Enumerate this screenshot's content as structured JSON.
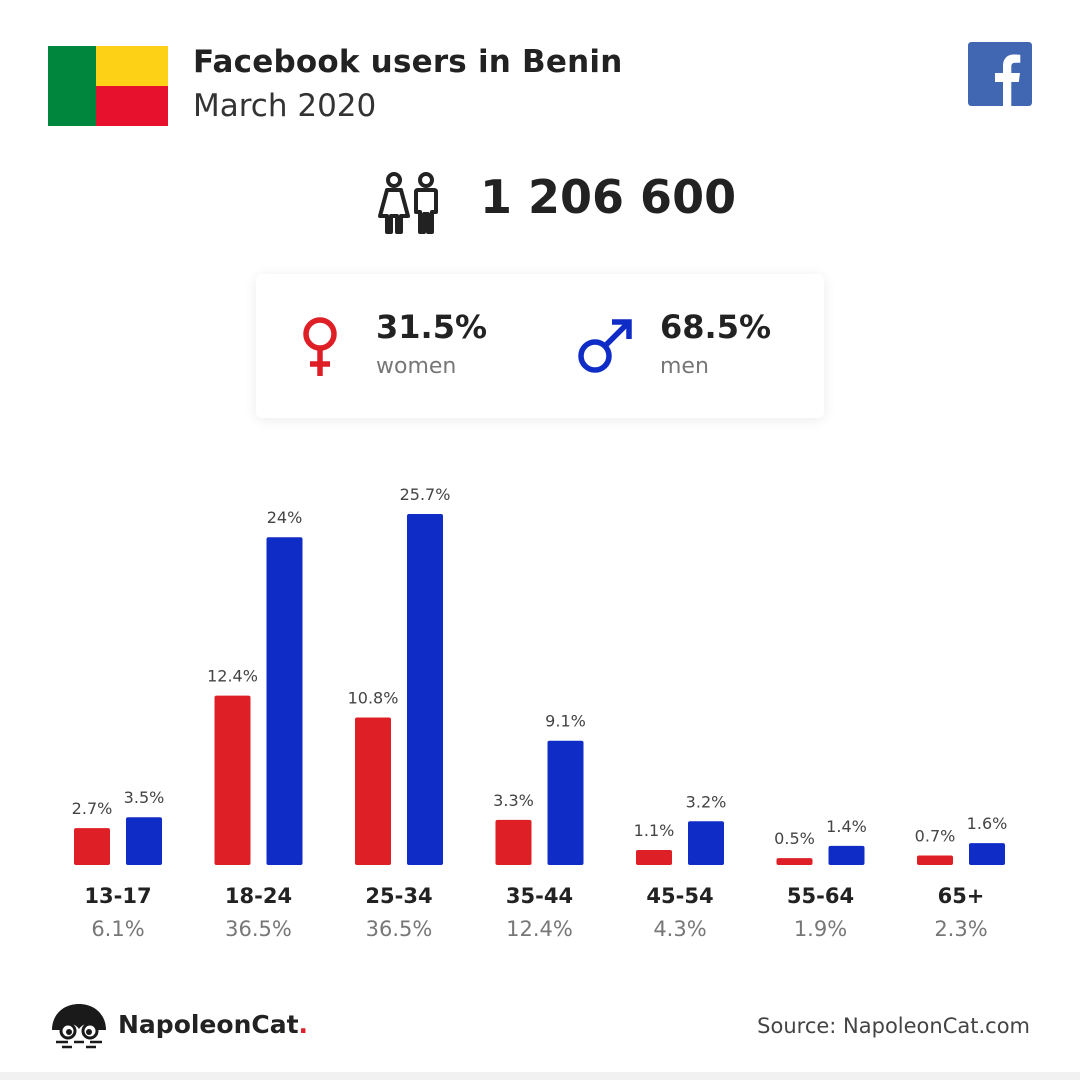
{
  "header": {
    "title": "Facebook users in Benin",
    "subtitle": "March 2020"
  },
  "flag": {
    "green": "#00873e",
    "yellow": "#fcd116",
    "red": "#e8112d"
  },
  "brand_colors": {
    "facebook": "#4267b2",
    "women": "#df1f26",
    "men": "#0f2cc6"
  },
  "total": {
    "value": "1 206 600",
    "icon": "people-icon"
  },
  "gender": {
    "women": {
      "pct": "31.5%",
      "label": "women",
      "icon": "female-symbol-icon"
    },
    "men": {
      "pct": "68.5%",
      "label": "men",
      "icon": "male-symbol-icon"
    }
  },
  "chart_data": {
    "type": "bar",
    "categories": [
      "13-17",
      "18-24",
      "25-34",
      "35-44",
      "45-54",
      "55-64",
      "65+"
    ],
    "category_totals": [
      "6.1%",
      "36.5%",
      "36.5%",
      "12.4%",
      "4.3%",
      "1.9%",
      "2.3%"
    ],
    "series": [
      {
        "key": "women",
        "color": "#df1f26",
        "values": [
          2.7,
          12.4,
          10.8,
          3.3,
          1.1,
          0.5,
          0.7
        ],
        "labels": [
          "2.7%",
          "12.4%",
          "10.8%",
          "3.3%",
          "1.1%",
          "0.5%",
          "0.7%"
        ]
      },
      {
        "key": "men",
        "color": "#0f2cc6",
        "values": [
          3.5,
          24,
          25.7,
          9.1,
          3.2,
          1.4,
          1.6
        ],
        "labels": [
          "3.5%",
          "24%",
          "25.7%",
          "9.1%",
          "3.2%",
          "1.4%",
          "1.6%"
        ]
      }
    ],
    "ylim": [
      0,
      25.7
    ]
  },
  "footer": {
    "brand_name": "NapoleonCat",
    "brand_dot": ".",
    "source": "Source: NapoleonCat.com"
  }
}
